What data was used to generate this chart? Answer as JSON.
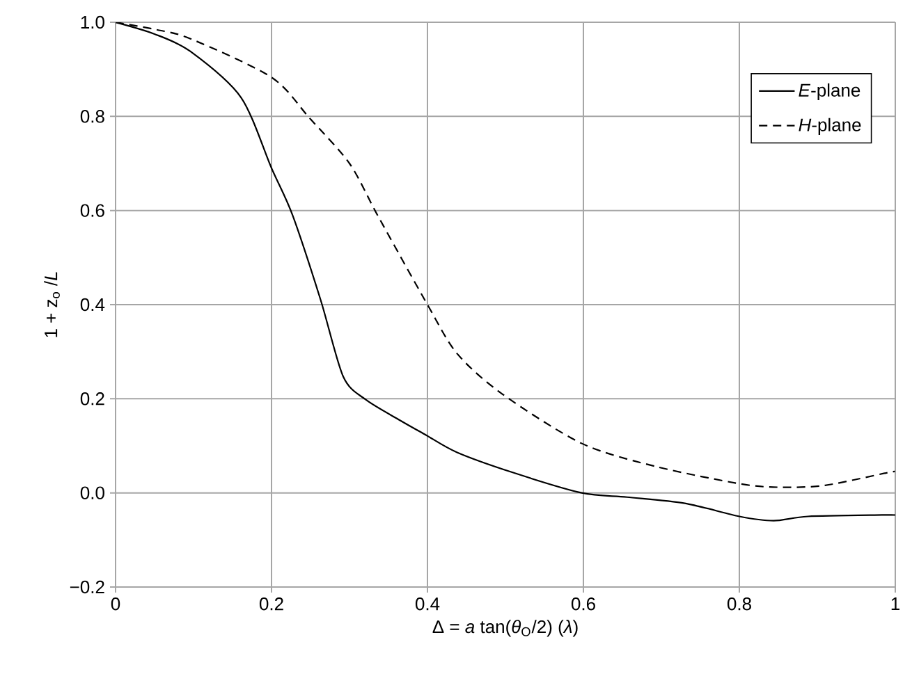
{
  "chart_data": {
    "type": "line",
    "xlabel": "Δ = *a* tan(*θ*$_{O}$/2) (*λ*)",
    "ylabel": "1 + z$_{o}$ /*L*",
    "xlim": [
      0,
      1
    ],
    "ylim": [
      -0.2,
      1.0
    ],
    "xticks": [
      0,
      0.2,
      0.4,
      0.6,
      0.8,
      1
    ],
    "yticks": [
      {
        "value": -0.2,
        "label": "−0.2"
      },
      {
        "value": 0,
        "label": "0.0"
      },
      0.2,
      0.4,
      0.6,
      0.8,
      {
        "value": 1.0,
        "label": "1.0"
      }
    ],
    "grid": true,
    "legend": "top right",
    "marker": "none",
    "series": [
      {
        "name": "*E*-plane",
        "color": "#000000",
        "line_style": "solid",
        "x": [
          0,
          0.05,
          0.096,
          0.161,
          0.2,
          0.227,
          0.263,
          0.292,
          0.321,
          0.365,
          0.398,
          0.438,
          0.51,
          0.598,
          0.656,
          0.73,
          0.8,
          0.844,
          0.888,
          0.983,
          1
        ],
        "values": [
          1,
          0.975,
          0.938,
          0.84,
          0.69,
          0.59,
          0.41,
          0.247,
          0.198,
          0.154,
          0.123,
          0.086,
          0.043,
          0,
          -0.009,
          -0.022,
          -0.05,
          -0.059,
          -0.05,
          -0.047,
          -0.047
        ]
      },
      {
        "name": "*H*-plane",
        "color": "#000000",
        "line_style": "dashed",
        "x": [
          0,
          0.05,
          0.096,
          0.2,
          0.249,
          0.3,
          0.336,
          0.4,
          0.438,
          0.496,
          0.598,
          0.693,
          0.802,
          0.852,
          0.91,
          0.99,
          1
        ],
        "values": [
          1,
          0.985,
          0.965,
          0.883,
          0.796,
          0.7,
          0.59,
          0.4,
          0.296,
          0.21,
          0.105,
          0.056,
          0.019,
          0.012,
          0.016,
          0.043,
          0.045
        ]
      }
    ]
  }
}
